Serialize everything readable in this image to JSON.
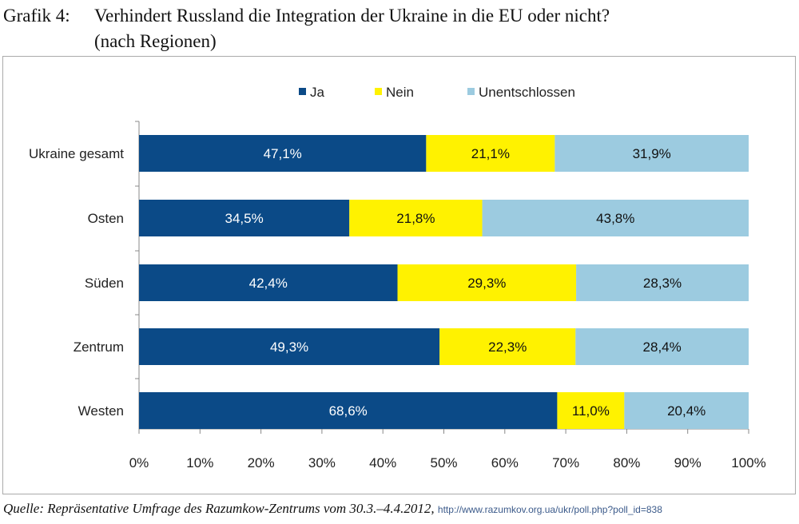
{
  "figure": {
    "number_label": "Grafik 4:",
    "title_line1": "Verhindert Russland die Integration der Ukraine in die EU oder nicht?",
    "title_line2": "(nach Regionen)",
    "source_text": "Quelle: Repräsentative Umfrage des Razumkow-Zentrums vom 30.3.–4.4.2012,",
    "source_link": "http://www.razumkov.org.ua/ukr/poll.php?poll_id=838"
  },
  "chart_data": {
    "type": "bar",
    "orientation": "horizontal",
    "stacked": true,
    "categories": [
      "Ukraine gesamt",
      "Osten",
      "Süden",
      "Zentrum",
      "Westen"
    ],
    "series": [
      {
        "name": "Ja",
        "color": "#0b4a87",
        "label_color": "#ffffff",
        "values": [
          47.1,
          34.5,
          42.4,
          49.3,
          68.6
        ],
        "labels": [
          "47,1%",
          "34,5%",
          "42,4%",
          "49,3%",
          "68,6%"
        ]
      },
      {
        "name": "Nein",
        "color": "#fff200",
        "label_color": "#111111",
        "values": [
          21.1,
          21.8,
          29.3,
          22.3,
          11.0
        ],
        "labels": [
          "21,1%",
          "21,8%",
          "29,3%",
          "22,3%",
          "11,0%"
        ]
      },
      {
        "name": "Unentschlossen",
        "color": "#9ccbe0",
        "label_color": "#111111",
        "values": [
          31.9,
          43.8,
          28.3,
          28.4,
          20.4
        ],
        "labels": [
          "31,9%",
          "43,8%",
          "28,3%",
          "28,4%",
          "20,4%"
        ]
      }
    ],
    "xlim": [
      0,
      100
    ],
    "xticks": [
      "0%",
      "10%",
      "20%",
      "30%",
      "40%",
      "50%",
      "60%",
      "70%",
      "80%",
      "90%",
      "100%"
    ],
    "grid": false,
    "legend_position": "top-center"
  }
}
